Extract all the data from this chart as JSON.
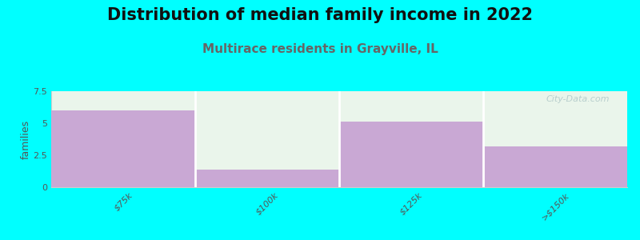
{
  "title": "Distribution of median family income in 2022",
  "subtitle": "Multirace residents in Grayville, IL",
  "categories": [
    "$75k",
    "$100k",
    "$125k",
    ">$150k"
  ],
  "values": [
    6.0,
    1.4,
    5.1,
    3.2
  ],
  "bar_color": "#c9a8d4",
  "bar_color_light": "#eaf5eb",
  "background_color": "#00ffff",
  "plot_bg_color": "#f0faf0",
  "ylabel": "families",
  "ylim": [
    0,
    7.5
  ],
  "yticks": [
    0,
    2.5,
    5,
    7.5
  ],
  "title_fontsize": 15,
  "subtitle_fontsize": 11,
  "subtitle_color": "#666666",
  "watermark": "City-Data.com",
  "watermark_color": "#b0c8c8"
}
